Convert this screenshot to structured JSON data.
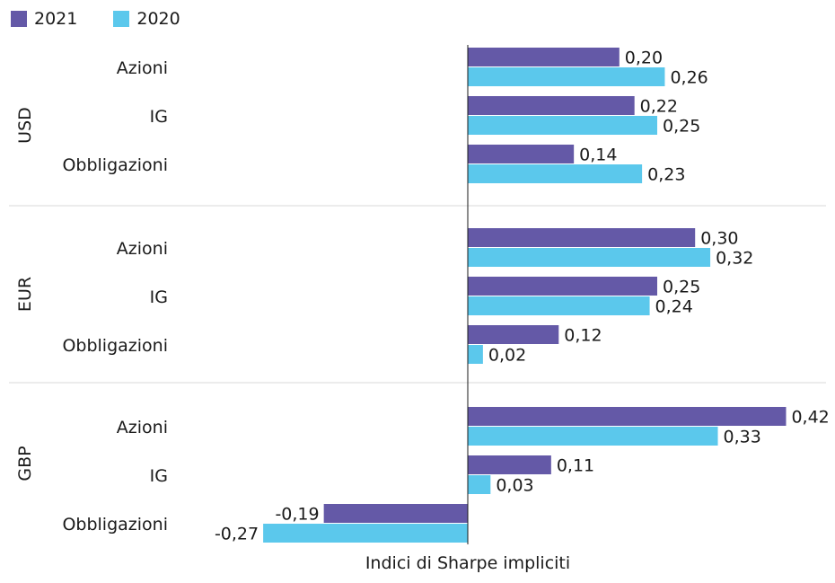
{
  "chart_data": {
    "type": "bar",
    "orientation": "horizontal",
    "xlabel": "Indici di Sharpe impliciti",
    "xlim": [
      -0.27,
      0.42
    ],
    "grid": false,
    "legend_position": "top-left",
    "groups": [
      {
        "name": "USD",
        "categories": [
          "Azioni",
          "IG",
          "Obbligazioni"
        ]
      },
      {
        "name": "EUR",
        "categories": [
          "Azioni",
          "IG",
          "Obbligazioni"
        ]
      },
      {
        "name": "GBP",
        "categories": [
          "Azioni",
          "IG",
          "Obbligazioni"
        ]
      }
    ],
    "series": [
      {
        "name": "2021",
        "color": "#6459A7",
        "values": [
          0.2,
          0.22,
          0.14,
          0.3,
          0.25,
          0.12,
          0.42,
          0.11,
          -0.19
        ],
        "labels": [
          "0,20",
          "0,22",
          "0,14",
          "0,30",
          "0,25",
          "0,12",
          "0,42",
          "0,11",
          "-0,19"
        ]
      },
      {
        "name": "2020",
        "color": "#5BC8EC",
        "values": [
          0.26,
          0.25,
          0.23,
          0.32,
          0.24,
          0.02,
          0.33,
          0.03,
          -0.27
        ],
        "labels": [
          "0,26",
          "0,25",
          "0,23",
          "0,32",
          "0,24",
          "0,02",
          "0,33",
          "0,03",
          "-0,27"
        ]
      }
    ]
  }
}
